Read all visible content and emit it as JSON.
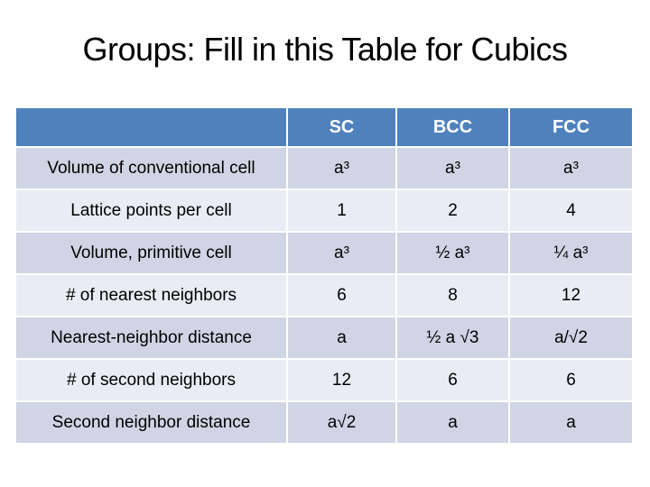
{
  "slide": {
    "title": "Groups: Fill in this Table for Cubics"
  },
  "table": {
    "columns": [
      "",
      "SC",
      "BCC",
      "FCC"
    ],
    "rows": [
      {
        "label": "Volume of conventional cell",
        "values": [
          "a³",
          "a³",
          "a³"
        ]
      },
      {
        "label": "Lattice points per cell",
        "values": [
          "1",
          "2",
          "4"
        ]
      },
      {
        "label": "Volume, primitive cell",
        "values": [
          "a³",
          "½ a³",
          "¼ a³"
        ]
      },
      {
        "label": "# of nearest neighbors",
        "values": [
          "6",
          "8",
          "12"
        ]
      },
      {
        "label": "Nearest-neighbor distance",
        "values": [
          "a",
          "½ a √3",
          "a/√2"
        ]
      },
      {
        "label": "# of second neighbors",
        "values": [
          "12",
          "6",
          "6"
        ]
      },
      {
        "label": "Second neighbor distance",
        "values": [
          "a√2",
          "a",
          "a"
        ]
      }
    ]
  },
  "colors": {
    "background": "#FFFFFF",
    "title_text": "#000000",
    "header_bg": "#4F81BD",
    "header_text": "#FFFFFF",
    "band_dark": "#CFD5E4",
    "band_light": "#E9ECF4",
    "body_text": "#000000",
    "grid_lines": "#FFFFFF"
  }
}
